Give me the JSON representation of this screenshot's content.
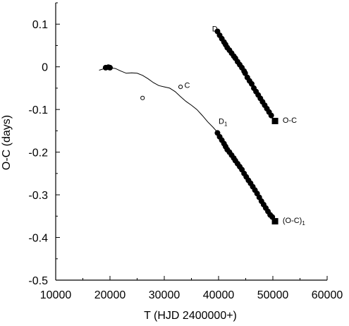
{
  "chart_data": {
    "type": "scatter",
    "xlabel": "T (HJD 2400000+)",
    "ylabel": "O-C (days)",
    "xlim": [
      10000,
      60000
    ],
    "ylim": [
      -0.5,
      0.15
    ],
    "xticks": [
      10000,
      20000,
      30000,
      40000,
      50000,
      60000
    ],
    "yticks": [
      0.1,
      0,
      -0.1,
      -0.2,
      -0.3,
      -0.4,
      -0.5
    ],
    "xtick_labels": [
      "10000",
      "20000",
      "30000",
      "40000",
      "50000",
      "60000"
    ],
    "ytick_labels": [
      "0.1",
      "0",
      "-0.1",
      "-0.2",
      "-0.3",
      "-0.4",
      "-0.5"
    ],
    "grid": false,
    "series": [
      {
        "marker": "filled-circle",
        "points": [
          [
            39800,
            0.083
          ],
          [
            40200,
            0.074
          ],
          [
            40600,
            0.066
          ],
          [
            41000,
            0.058
          ],
          [
            41300,
            0.052
          ],
          [
            41600,
            0.045
          ],
          [
            42000,
            0.039
          ],
          [
            42400,
            0.032
          ],
          [
            42800,
            0.025
          ],
          [
            43100,
            0.02
          ],
          [
            43500,
            0.012
          ],
          [
            43900,
            0.005
          ],
          [
            44300,
            -0.002
          ],
          [
            44700,
            -0.01
          ],
          [
            44900,
            -0.015
          ],
          [
            45300,
            -0.025
          ],
          [
            45700,
            -0.033
          ],
          [
            46100,
            -0.04
          ],
          [
            46500,
            -0.05
          ],
          [
            46900,
            -0.058
          ],
          [
            47300,
            -0.066
          ],
          [
            47700,
            -0.074
          ],
          [
            48100,
            -0.082
          ],
          [
            48500,
            -0.09
          ],
          [
            48900,
            -0.098
          ],
          [
            49300,
            -0.106
          ],
          [
            49700,
            -0.114
          ]
        ]
      },
      {
        "marker": "filled-square",
        "points": [
          [
            50400,
            -0.127
          ]
        ]
      },
      {
        "marker": "filled-circle",
        "points": [
          [
            19200,
            -0.002
          ],
          [
            19700,
            -0.001
          ],
          [
            20000,
            -0.002
          ],
          [
            39800,
            -0.155
          ],
          [
            40200,
            -0.164
          ],
          [
            40600,
            -0.172
          ],
          [
            41000,
            -0.18
          ],
          [
            41300,
            -0.187
          ],
          [
            41600,
            -0.194
          ],
          [
            42000,
            -0.2
          ],
          [
            42400,
            -0.207
          ],
          [
            42800,
            -0.214
          ],
          [
            43100,
            -0.22
          ],
          [
            43500,
            -0.227
          ],
          [
            43900,
            -0.234
          ],
          [
            44300,
            -0.241
          ],
          [
            44700,
            -0.25
          ],
          [
            45100,
            -0.258
          ],
          [
            45500,
            -0.266
          ],
          [
            45900,
            -0.273
          ],
          [
            46300,
            -0.281
          ],
          [
            46700,
            -0.289
          ],
          [
            47100,
            -0.297
          ],
          [
            47500,
            -0.306
          ],
          [
            47900,
            -0.315
          ],
          [
            48300,
            -0.323
          ],
          [
            48700,
            -0.331
          ],
          [
            49100,
            -0.339
          ],
          [
            49500,
            -0.347
          ],
          [
            49900,
            -0.352
          ]
        ]
      },
      {
        "marker": "filled-square",
        "points": [
          [
            50400,
            -0.362
          ]
        ]
      },
      {
        "marker": "open-circle",
        "points": [
          [
            26000,
            -0.073
          ],
          [
            33000,
            -0.047
          ]
        ]
      },
      {
        "marker": "line",
        "points": [
          [
            18000,
            -0.008
          ],
          [
            19000,
            -0.004
          ],
          [
            20000,
            -0.002
          ],
          [
            21000,
            -0.004
          ],
          [
            22000,
            -0.01
          ],
          [
            23000,
            -0.015
          ],
          [
            24000,
            -0.014
          ],
          [
            25000,
            -0.015
          ],
          [
            26000,
            -0.02
          ],
          [
            27000,
            -0.028
          ],
          [
            28000,
            -0.037
          ],
          [
            29000,
            -0.044
          ],
          [
            30000,
            -0.047
          ],
          [
            31000,
            -0.05
          ],
          [
            32000,
            -0.058
          ],
          [
            33000,
            -0.07
          ],
          [
            34000,
            -0.081
          ],
          [
            35000,
            -0.09
          ],
          [
            36000,
            -0.1
          ],
          [
            37000,
            -0.114
          ],
          [
            38000,
            -0.129
          ],
          [
            39000,
            -0.142
          ],
          [
            39700,
            -0.152
          ]
        ]
      }
    ],
    "annotations": [
      {
        "text": "D",
        "x": 38800,
        "y": 0.083
      },
      {
        "text": "C",
        "x": 33700,
        "y": -0.049
      },
      {
        "text": "D",
        "subscript": "1",
        "x": 40000,
        "y": -0.134
      },
      {
        "text": "O-C",
        "x": 51800,
        "y": -0.131
      },
      {
        "text": "(O-C)",
        "subscript": "1",
        "x": 51800,
        "y": -0.366
      }
    ]
  }
}
